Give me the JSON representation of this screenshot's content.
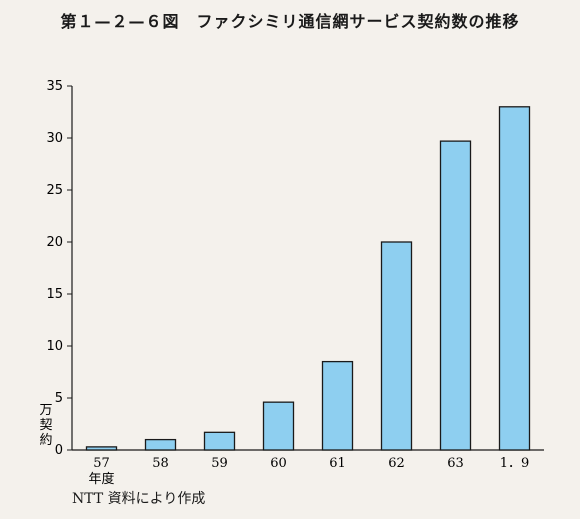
{
  "title": "第１—２—６図　ファクシミリ通信網サービス契約数の推移",
  "source_note": "NTT 資料により作成",
  "chart_data": {
    "type": "bar",
    "title": "第１—２—６図　ファクシミリ通信網サービス契約数の推移",
    "ylabel": "万契約",
    "xlabel_first_suffix": "年度",
    "categories": [
      "57",
      "58",
      "59",
      "60",
      "61",
      "62",
      "63",
      "1．9"
    ],
    "values": [
      0.3,
      1.0,
      1.7,
      4.6,
      8.5,
      20.0,
      29.7,
      33.0
    ],
    "ylim": [
      0,
      35
    ],
    "yticks": [
      0,
      5,
      10,
      15,
      20,
      25,
      30,
      35
    ],
    "bar_color": "#8ecff0",
    "bar_stroke": "#1a1a1a",
    "grid": false
  }
}
